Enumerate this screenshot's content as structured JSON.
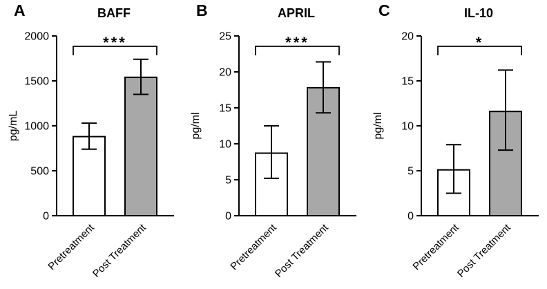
{
  "figure_colors": {
    "pretreatment_bar_fill": "#ffffff",
    "post_treatment_bar_fill": "#a8a8a8",
    "line_color": "#000000"
  },
  "chart_data": [
    {
      "type": "bar",
      "panel_letter": "A",
      "title": "BAFF",
      "xlabel": "",
      "ylabel": "pg/mL",
      "ylim": [
        0,
        2000
      ],
      "yticks": [
        0,
        500,
        1000,
        1500,
        2000
      ],
      "categories": [
        "Pretreatment",
        "Post Treatment"
      ],
      "values": [
        880,
        1540
      ],
      "errors": [
        {
          "low": 740,
          "high": 1030
        },
        {
          "low": 1350,
          "high": 1740
        }
      ],
      "bar_colors": [
        "#ffffff",
        "#a8a8a8"
      ],
      "significance": "***",
      "grid": "off",
      "legend": "none"
    },
    {
      "type": "bar",
      "panel_letter": "B",
      "title": "APRIL",
      "xlabel": "",
      "ylabel": "pg/ml",
      "ylim": [
        0,
        25
      ],
      "yticks": [
        0,
        5,
        10,
        15,
        20,
        25
      ],
      "categories": [
        "Pretreatment",
        "Post Treatment"
      ],
      "values": [
        8.7,
        17.8
      ],
      "errors": [
        {
          "low": 5.2,
          "high": 12.5
        },
        {
          "low": 14.3,
          "high": 21.4
        }
      ],
      "bar_colors": [
        "#ffffff",
        "#a8a8a8"
      ],
      "significance": "***",
      "grid": "off",
      "legend": "none"
    },
    {
      "type": "bar",
      "panel_letter": "C",
      "title": "IL-10",
      "xlabel": "",
      "ylabel": "pg/ml",
      "ylim": [
        0,
        20
      ],
      "yticks": [
        0,
        5,
        10,
        15,
        20
      ],
      "categories": [
        "Pretreatment",
        "Post Treatment"
      ],
      "values": [
        5.1,
        11.6
      ],
      "errors": [
        {
          "low": 2.5,
          "high": 7.9
        },
        {
          "low": 7.3,
          "high": 16.2
        }
      ],
      "bar_colors": [
        "#ffffff",
        "#a8a8a8"
      ],
      "significance": "*",
      "grid": "off",
      "legend": "none"
    }
  ]
}
